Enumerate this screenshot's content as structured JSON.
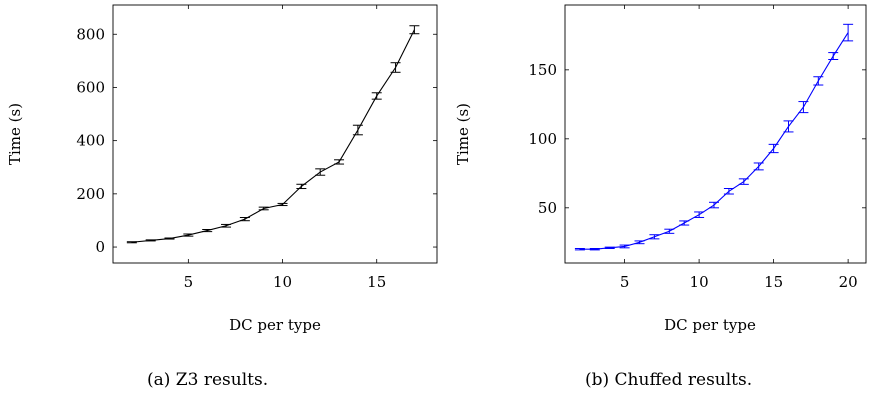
{
  "chart_data": [
    {
      "type": "line",
      "caption": "(a) Z3 results.",
      "xlabel": "DC per type",
      "ylabel": "Time (s)",
      "xlim": [
        1,
        18.2
      ],
      "ylim": [
        -60,
        910
      ],
      "xticks": [
        5,
        10,
        15
      ],
      "yticks": [
        0,
        200,
        400,
        600,
        800
      ],
      "grid": false,
      "color": "#000000",
      "series": [
        {
          "x": [
            2,
            3,
            4,
            5,
            6,
            7,
            8,
            9,
            10,
            11,
            12,
            13,
            14,
            15,
            16,
            17
          ],
          "y": [
            18,
            25,
            32,
            45,
            62,
            80,
            105,
            145,
            160,
            228,
            282,
            320,
            440,
            568,
            675,
            817
          ],
          "err": [
            2,
            2,
            2,
            4,
            4,
            5,
            6,
            5,
            4,
            8,
            12,
            8,
            18,
            12,
            18,
            15
          ]
        }
      ]
    },
    {
      "type": "line",
      "caption": "(b) Chuffed results.",
      "xlabel": "DC per type",
      "ylabel": "Time (s)",
      "xlim": [
        1,
        21.2
      ],
      "ylim": [
        10,
        197
      ],
      "xticks": [
        5,
        10,
        15,
        20
      ],
      "yticks": [
        50,
        100,
        150
      ],
      "grid": false,
      "color": "#0000ff",
      "series": [
        {
          "x": [
            2,
            3,
            4,
            5,
            6,
            7,
            8,
            9,
            10,
            11,
            12,
            13,
            14,
            15,
            16,
            17,
            18,
            19,
            20
          ],
          "y": [
            20,
            20,
            21,
            22,
            25,
            29,
            33,
            39,
            45,
            52,
            62,
            69,
            80,
            93,
            109,
            123,
            142,
            160,
            177
          ],
          "err": [
            0.5,
            0.5,
            0.5,
            1,
            1,
            1.5,
            1.5,
            1.5,
            2,
            2,
            2,
            2,
            2.5,
            3,
            4,
            4,
            3,
            2.5,
            6
          ]
        }
      ]
    }
  ]
}
